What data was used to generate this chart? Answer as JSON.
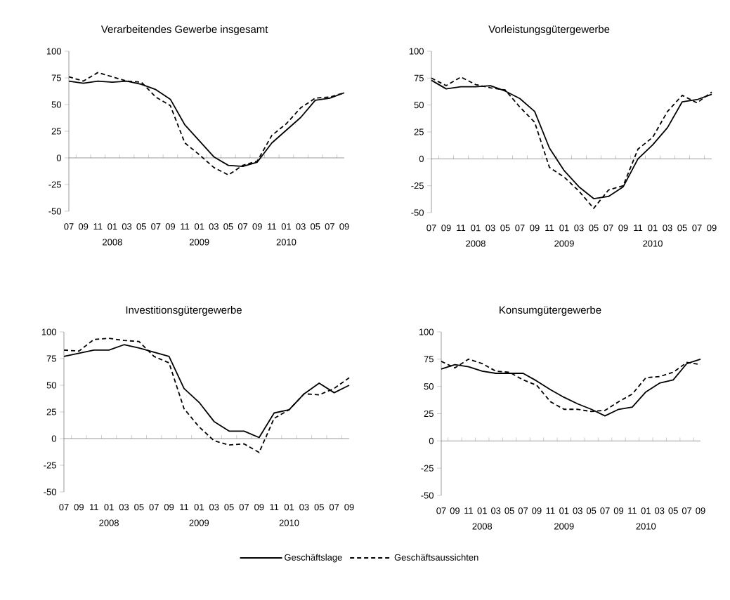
{
  "chart_data": [
    {
      "type": "line",
      "title": "Verarbeitendes Gewerbe insgesamt",
      "x": [
        "2007-07",
        "2007-09",
        "2007-11",
        "2008-01",
        "2008-03",
        "2008-05",
        "2008-07",
        "2008-09",
        "2008-11",
        "2009-01",
        "2009-03",
        "2009-05",
        "2009-07",
        "2009-09",
        "2009-11",
        "2010-01",
        "2010-03",
        "2010-05",
        "2010-07",
        "2010-09"
      ],
      "series": [
        {
          "color": "#000000",
          "line_style": "solid",
          "values": [
            72,
            70,
            72,
            71,
            72,
            69,
            64,
            55,
            31,
            16,
            1,
            -7,
            -8,
            -4,
            14,
            26,
            38,
            54,
            56,
            61
          ]
        },
        {
          "color": "#000000",
          "line_style": "dashed",
          "values": [
            76,
            72,
            80,
            76,
            72,
            71,
            57,
            49,
            14,
            3,
            -9,
            -16,
            -7,
            -3,
            21,
            32,
            47,
            56,
            57,
            61
          ]
        }
      ],
      "xlim": [
        "2007-07",
        "2010-09"
      ],
      "ylim": [
        -50,
        100
      ],
      "yticks": [
        -50,
        -25,
        0,
        25,
        50,
        75,
        100
      ],
      "xticks": [
        {
          "value": "2007-07",
          "label": "07"
        },
        {
          "value": "2007-09",
          "label": "09"
        },
        {
          "value": "2007-11",
          "label": "11"
        },
        {
          "value": "2008-01",
          "label": "01"
        },
        {
          "value": "2008-03",
          "label": "03"
        },
        {
          "value": "2008-05",
          "label": "05"
        },
        {
          "value": "2008-07",
          "label": "07"
        },
        {
          "value": "2008-09",
          "label": "09"
        },
        {
          "value": "2008-11",
          "label": "11"
        },
        {
          "value": "2009-01",
          "label": "01"
        },
        {
          "value": "2009-03",
          "label": "03"
        },
        {
          "value": "2009-05",
          "label": "05"
        },
        {
          "value": "2009-07",
          "label": "07"
        },
        {
          "value": "2009-09",
          "label": "09"
        },
        {
          "value": "2009-11",
          "label": "11"
        },
        {
          "value": "2010-01",
          "label": "01"
        },
        {
          "value": "2010-03",
          "label": "03"
        },
        {
          "value": "2010-05",
          "label": "05"
        },
        {
          "value": "2010-07",
          "label": "07"
        },
        {
          "value": "2010-09",
          "label": "09"
        }
      ],
      "annotations": [
        "2008",
        "2009",
        "2010"
      ],
      "marker": "none",
      "legend": false
    },
    {
      "type": "line",
      "title": "Vorleistungsgütergewerbe",
      "x": [
        "2007-07",
        "2007-09",
        "2007-11",
        "2008-01",
        "2008-03",
        "2008-05",
        "2008-07",
        "2008-09",
        "2008-11",
        "2009-01",
        "2009-03",
        "2009-05",
        "2009-07",
        "2009-09",
        "2009-11",
        "2010-01",
        "2010-03",
        "2010-05",
        "2010-07",
        "2010-09"
      ],
      "series": [
        {
          "color": "#000000",
          "line_style": "solid",
          "values": [
            73,
            65,
            67,
            67,
            68,
            63,
            56,
            44,
            10,
            -11,
            -26,
            -37,
            -35,
            -26,
            0,
            13,
            29,
            53,
            55,
            60
          ]
        },
        {
          "color": "#000000",
          "line_style": "dashed",
          "values": [
            75,
            68,
            76,
            69,
            66,
            64,
            48,
            34,
            -8,
            -17,
            -30,
            -46,
            -29,
            -25,
            9,
            20,
            44,
            59,
            52,
            62
          ]
        }
      ],
      "xlim": [
        "2007-07",
        "2010-09"
      ],
      "ylim": [
        -50,
        100
      ],
      "yticks": [
        -50,
        -25,
        0,
        25,
        50,
        75,
        100
      ],
      "xticks": [
        {
          "value": "2007-07",
          "label": "07"
        },
        {
          "value": "2007-09",
          "label": "09"
        },
        {
          "value": "2007-11",
          "label": "11"
        },
        {
          "value": "2008-01",
          "label": "01"
        },
        {
          "value": "2008-03",
          "label": "03"
        },
        {
          "value": "2008-05",
          "label": "05"
        },
        {
          "value": "2008-07",
          "label": "07"
        },
        {
          "value": "2008-09",
          "label": "09"
        },
        {
          "value": "2008-11",
          "label": "11"
        },
        {
          "value": "2009-01",
          "label": "01"
        },
        {
          "value": "2009-03",
          "label": "03"
        },
        {
          "value": "2009-05",
          "label": "05"
        },
        {
          "value": "2009-07",
          "label": "07"
        },
        {
          "value": "2009-09",
          "label": "09"
        },
        {
          "value": "2009-11",
          "label": "11"
        },
        {
          "value": "2010-01",
          "label": "01"
        },
        {
          "value": "2010-03",
          "label": "03"
        },
        {
          "value": "2010-05",
          "label": "05"
        },
        {
          "value": "2010-07",
          "label": "07"
        },
        {
          "value": "2010-09",
          "label": "09"
        }
      ],
      "annotations": [
        "2008",
        "2009",
        "2010"
      ],
      "marker": "none",
      "legend": false
    },
    {
      "type": "line",
      "title": "Investitionsgütergewerbe",
      "x": [
        "2007-07",
        "2007-09",
        "2007-11",
        "2008-01",
        "2008-03",
        "2008-05",
        "2008-07",
        "2008-09",
        "2008-11",
        "2009-01",
        "2009-03",
        "2009-05",
        "2009-07",
        "2009-09",
        "2009-11",
        "2010-01",
        "2010-03",
        "2010-05",
        "2010-07",
        "2010-09"
      ],
      "series": [
        {
          "name": "Geschäftslage",
          "color": "#000000",
          "line_style": "solid",
          "values": [
            77,
            80,
            83,
            83,
            88,
            85,
            81,
            77,
            47,
            34,
            16,
            7,
            7,
            1,
            24,
            27,
            42,
            52,
            43,
            50
          ]
        },
        {
          "name": "Geschäftsaussichten",
          "color": "#000000",
          "line_style": "dashed",
          "values": [
            83,
            82,
            93,
            94,
            92,
            91,
            77,
            71,
            28,
            11,
            -2,
            -6,
            -5,
            -13,
            19,
            27,
            42,
            41,
            47,
            57
          ]
        }
      ],
      "xlim": [
        "2007-07",
        "2010-09"
      ],
      "ylim": [
        -50,
        100
      ],
      "yticks": [
        -50,
        -25,
        0,
        25,
        50,
        75,
        100
      ],
      "xticks": [
        {
          "value": "2007-07",
          "label": "07"
        },
        {
          "value": "2007-09",
          "label": "09"
        },
        {
          "value": "2007-11",
          "label": "11"
        },
        {
          "value": "2008-01",
          "label": "01"
        },
        {
          "value": "2008-03",
          "label": "03"
        },
        {
          "value": "2008-05",
          "label": "05"
        },
        {
          "value": "2008-07",
          "label": "07"
        },
        {
          "value": "2008-09",
          "label": "09"
        },
        {
          "value": "2008-11",
          "label": "11"
        },
        {
          "value": "2009-01",
          "label": "01"
        },
        {
          "value": "2009-03",
          "label": "03"
        },
        {
          "value": "2009-05",
          "label": "05"
        },
        {
          "value": "2009-07",
          "label": "07"
        },
        {
          "value": "2009-09",
          "label": "09"
        },
        {
          "value": "2009-11",
          "label": "11"
        },
        {
          "value": "2010-01",
          "label": "01"
        },
        {
          "value": "2010-03",
          "label": "03"
        },
        {
          "value": "2010-05",
          "label": "05"
        },
        {
          "value": "2010-07",
          "label": "07"
        },
        {
          "value": "2010-09",
          "label": "09"
        }
      ],
      "annotations": [
        "2008",
        "2009",
        "2010"
      ],
      "marker": "none",
      "legend": "bottom"
    },
    {
      "type": "line",
      "title": "Konsumgütergewerbe",
      "x": [
        "2007-07",
        "2007-09",
        "2007-11",
        "2008-01",
        "2008-03",
        "2008-05",
        "2008-07",
        "2008-09",
        "2008-11",
        "2009-01",
        "2009-03",
        "2009-05",
        "2009-07",
        "2009-09",
        "2009-11",
        "2010-01",
        "2010-03",
        "2010-05",
        "2010-07",
        "2010-09"
      ],
      "series": [
        {
          "color": "#000000",
          "line_style": "solid",
          "values": [
            66,
            70,
            68,
            64,
            62,
            62,
            62,
            55,
            47,
            40,
            34,
            29,
            23,
            29,
            31,
            45,
            53,
            56,
            71,
            75
          ]
        },
        {
          "color": "#000000",
          "line_style": "dashed",
          "values": [
            73,
            67,
            75,
            71,
            64,
            63,
            56,
            51,
            36,
            29,
            29,
            27,
            28,
            36,
            43,
            58,
            59,
            63,
            72,
            70
          ]
        }
      ],
      "xlim": [
        "2007-07",
        "2010-09"
      ],
      "ylim": [
        -50,
        100
      ],
      "yticks": [
        -50,
        -25,
        0,
        25,
        50,
        75,
        100
      ],
      "xticks": [
        {
          "value": "2007-07",
          "label": "07"
        },
        {
          "value": "2007-09",
          "label": "09"
        },
        {
          "value": "2007-11",
          "label": "11"
        },
        {
          "value": "2008-01",
          "label": "01"
        },
        {
          "value": "2008-03",
          "label": "03"
        },
        {
          "value": "2008-05",
          "label": "05"
        },
        {
          "value": "2008-07",
          "label": "07"
        },
        {
          "value": "2008-09",
          "label": "09"
        },
        {
          "value": "2008-11",
          "label": "11"
        },
        {
          "value": "2009-01",
          "label": "01"
        },
        {
          "value": "2009-03",
          "label": "03"
        },
        {
          "value": "2009-05",
          "label": "05"
        },
        {
          "value": "2009-07",
          "label": "07"
        },
        {
          "value": "2009-09",
          "label": "09"
        },
        {
          "value": "2009-11",
          "label": "11"
        },
        {
          "value": "2010-01",
          "label": "01"
        },
        {
          "value": "2010-03",
          "label": "03"
        },
        {
          "value": "2010-05",
          "label": "05"
        },
        {
          "value": "2010-07",
          "label": "07"
        },
        {
          "value": "2010-09",
          "label": "09"
        }
      ],
      "annotations": [
        "2008",
        "2009",
        "2010"
      ],
      "marker": "none",
      "legend": false
    }
  ]
}
